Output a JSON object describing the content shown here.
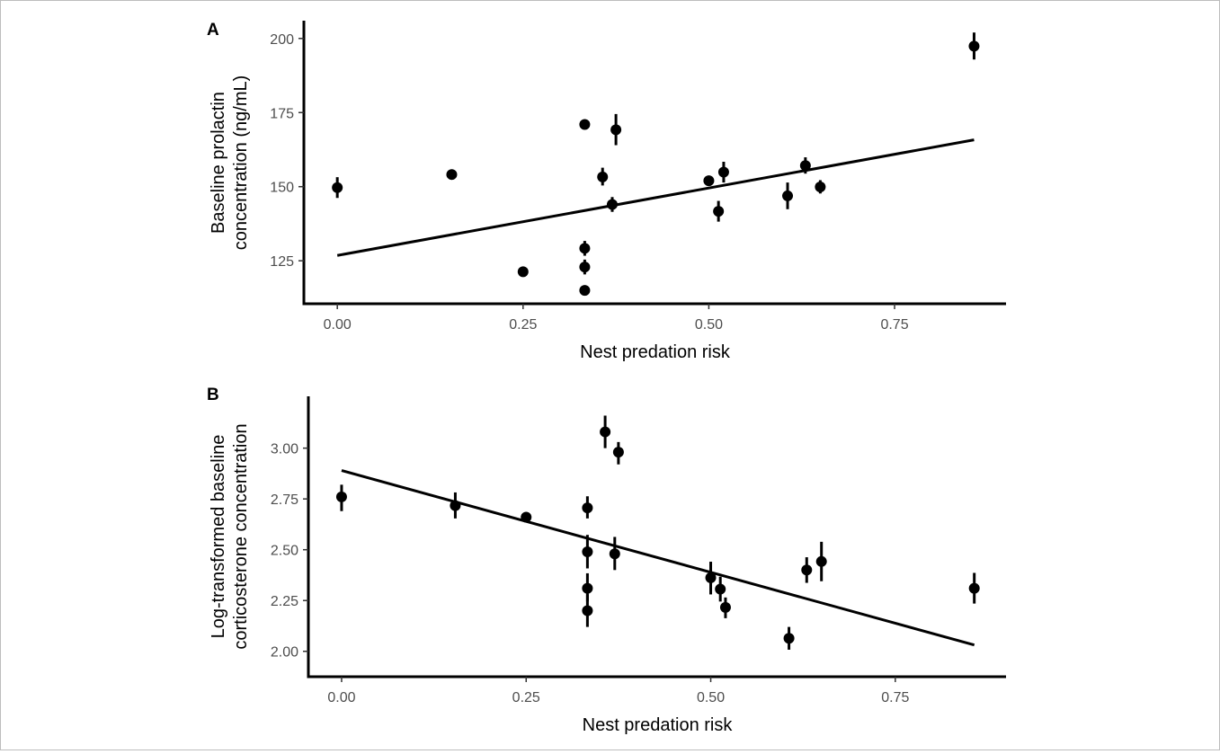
{
  "chart_data": [
    {
      "type": "scatter",
      "panel_label": "A",
      "xlabel": "Nest predation risk",
      "ylabel": [
        "Baseline prolactin",
        "concentration (ng/mL)"
      ],
      "xlim": [
        -0.045,
        0.9
      ],
      "ylim": [
        110.5,
        206
      ],
      "xticks": [
        0.0,
        0.25,
        0.5,
        0.75
      ],
      "xtick_labels": [
        "0.00",
        "0.25",
        "0.50",
        "0.75"
      ],
      "yticks": [
        125,
        150,
        175,
        200
      ],
      "ytick_labels": [
        "125",
        "150",
        "175",
        "200"
      ],
      "grid": false,
      "points": [
        {
          "x": 0.0,
          "y": 149.7,
          "err_lo": 146.2,
          "err_hi": 153.2
        },
        {
          "x": 0.154,
          "y": 154.1,
          "err_lo": 154.1,
          "err_hi": 154.1
        },
        {
          "x": 0.25,
          "y": 121.3,
          "err_lo": 121.3,
          "err_hi": 121.3
        },
        {
          "x": 0.333,
          "y": 171.0,
          "err_lo": 171.0,
          "err_hi": 171.0
        },
        {
          "x": 0.333,
          "y": 129.2,
          "err_lo": 126.7,
          "err_hi": 131.7
        },
        {
          "x": 0.333,
          "y": 122.9,
          "err_lo": 120.4,
          "err_hi": 125.4
        },
        {
          "x": 0.333,
          "y": 115.0,
          "err_lo": 115.0,
          "err_hi": 115.0
        },
        {
          "x": 0.357,
          "y": 153.3,
          "err_lo": 150.4,
          "err_hi": 156.4
        },
        {
          "x": 0.37,
          "y": 144.0,
          "err_lo": 141.5,
          "err_hi": 146.5
        },
        {
          "x": 0.375,
          "y": 169.2,
          "err_lo": 164.0,
          "err_hi": 174.5
        },
        {
          "x": 0.5,
          "y": 152.0,
          "err_lo": 152.0,
          "err_hi": 152.0
        },
        {
          "x": 0.513,
          "y": 141.7,
          "err_lo": 138.2,
          "err_hi": 145.2
        },
        {
          "x": 0.52,
          "y": 154.9,
          "err_lo": 151.4,
          "err_hi": 158.4
        },
        {
          "x": 0.606,
          "y": 146.9,
          "err_lo": 142.4,
          "err_hi": 151.4
        },
        {
          "x": 0.63,
          "y": 157.1,
          "err_lo": 154.4,
          "err_hi": 159.9
        },
        {
          "x": 0.65,
          "y": 149.9,
          "err_lo": 147.7,
          "err_hi": 152.2
        },
        {
          "x": 0.857,
          "y": 197.4,
          "err_lo": 192.9,
          "err_hi": 202.0
        }
      ],
      "fit_line": {
        "x": [
          0.0,
          0.857
        ],
        "y": [
          126.8,
          165.8
        ]
      }
    },
    {
      "type": "scatter",
      "panel_label": "B",
      "xlabel": "Nest predation risk",
      "ylabel": [
        "Log-transformed baseline",
        "corticosterone concentration"
      ],
      "xlim": [
        -0.045,
        0.9
      ],
      "ylim": [
        1.875,
        3.255
      ],
      "xticks": [
        0.0,
        0.25,
        0.5,
        0.75
      ],
      "xtick_labels": [
        "0.00",
        "0.25",
        "0.50",
        "0.75"
      ],
      "yticks": [
        2.0,
        2.25,
        2.5,
        2.75,
        3.0
      ],
      "ytick_labels": [
        "2.00",
        "2.25",
        "2.50",
        "2.75",
        "3.00"
      ],
      "grid": false,
      "points": [
        {
          "x": 0.0,
          "y": 2.76,
          "err_lo": 2.69,
          "err_hi": 2.82
        },
        {
          "x": 0.154,
          "y": 2.717,
          "err_lo": 2.654,
          "err_hi": 2.782
        },
        {
          "x": 0.25,
          "y": 2.66,
          "err_lo": 2.64,
          "err_hi": 2.68
        },
        {
          "x": 0.333,
          "y": 2.706,
          "err_lo": 2.654,
          "err_hi": 2.763
        },
        {
          "x": 0.333,
          "y": 2.49,
          "err_lo": 2.408,
          "err_hi": 2.573
        },
        {
          "x": 0.333,
          "y": 2.31,
          "err_lo": 2.245,
          "err_hi": 2.384
        },
        {
          "x": 0.333,
          "y": 2.2,
          "err_lo": 2.12,
          "err_hi": 2.28
        },
        {
          "x": 0.357,
          "y": 3.08,
          "err_lo": 3.0,
          "err_hi": 3.16
        },
        {
          "x": 0.37,
          "y": 2.48,
          "err_lo": 2.4,
          "err_hi": 2.563
        },
        {
          "x": 0.375,
          "y": 2.98,
          "err_lo": 2.92,
          "err_hi": 3.03
        },
        {
          "x": 0.5,
          "y": 2.362,
          "err_lo": 2.28,
          "err_hi": 2.441
        },
        {
          "x": 0.513,
          "y": 2.306,
          "err_lo": 2.245,
          "err_hi": 2.367
        },
        {
          "x": 0.52,
          "y": 2.216,
          "err_lo": 2.163,
          "err_hi": 2.265
        },
        {
          "x": 0.606,
          "y": 2.064,
          "err_lo": 2.008,
          "err_hi": 2.12
        },
        {
          "x": 0.63,
          "y": 2.4,
          "err_lo": 2.337,
          "err_hi": 2.463
        },
        {
          "x": 0.65,
          "y": 2.442,
          "err_lo": 2.345,
          "err_hi": 2.539
        },
        {
          "x": 0.857,
          "y": 2.31,
          "err_lo": 2.235,
          "err_hi": 2.386
        }
      ],
      "fit_line": {
        "x": [
          0.0,
          0.857
        ],
        "y": [
          2.89,
          2.031
        ]
      }
    }
  ]
}
